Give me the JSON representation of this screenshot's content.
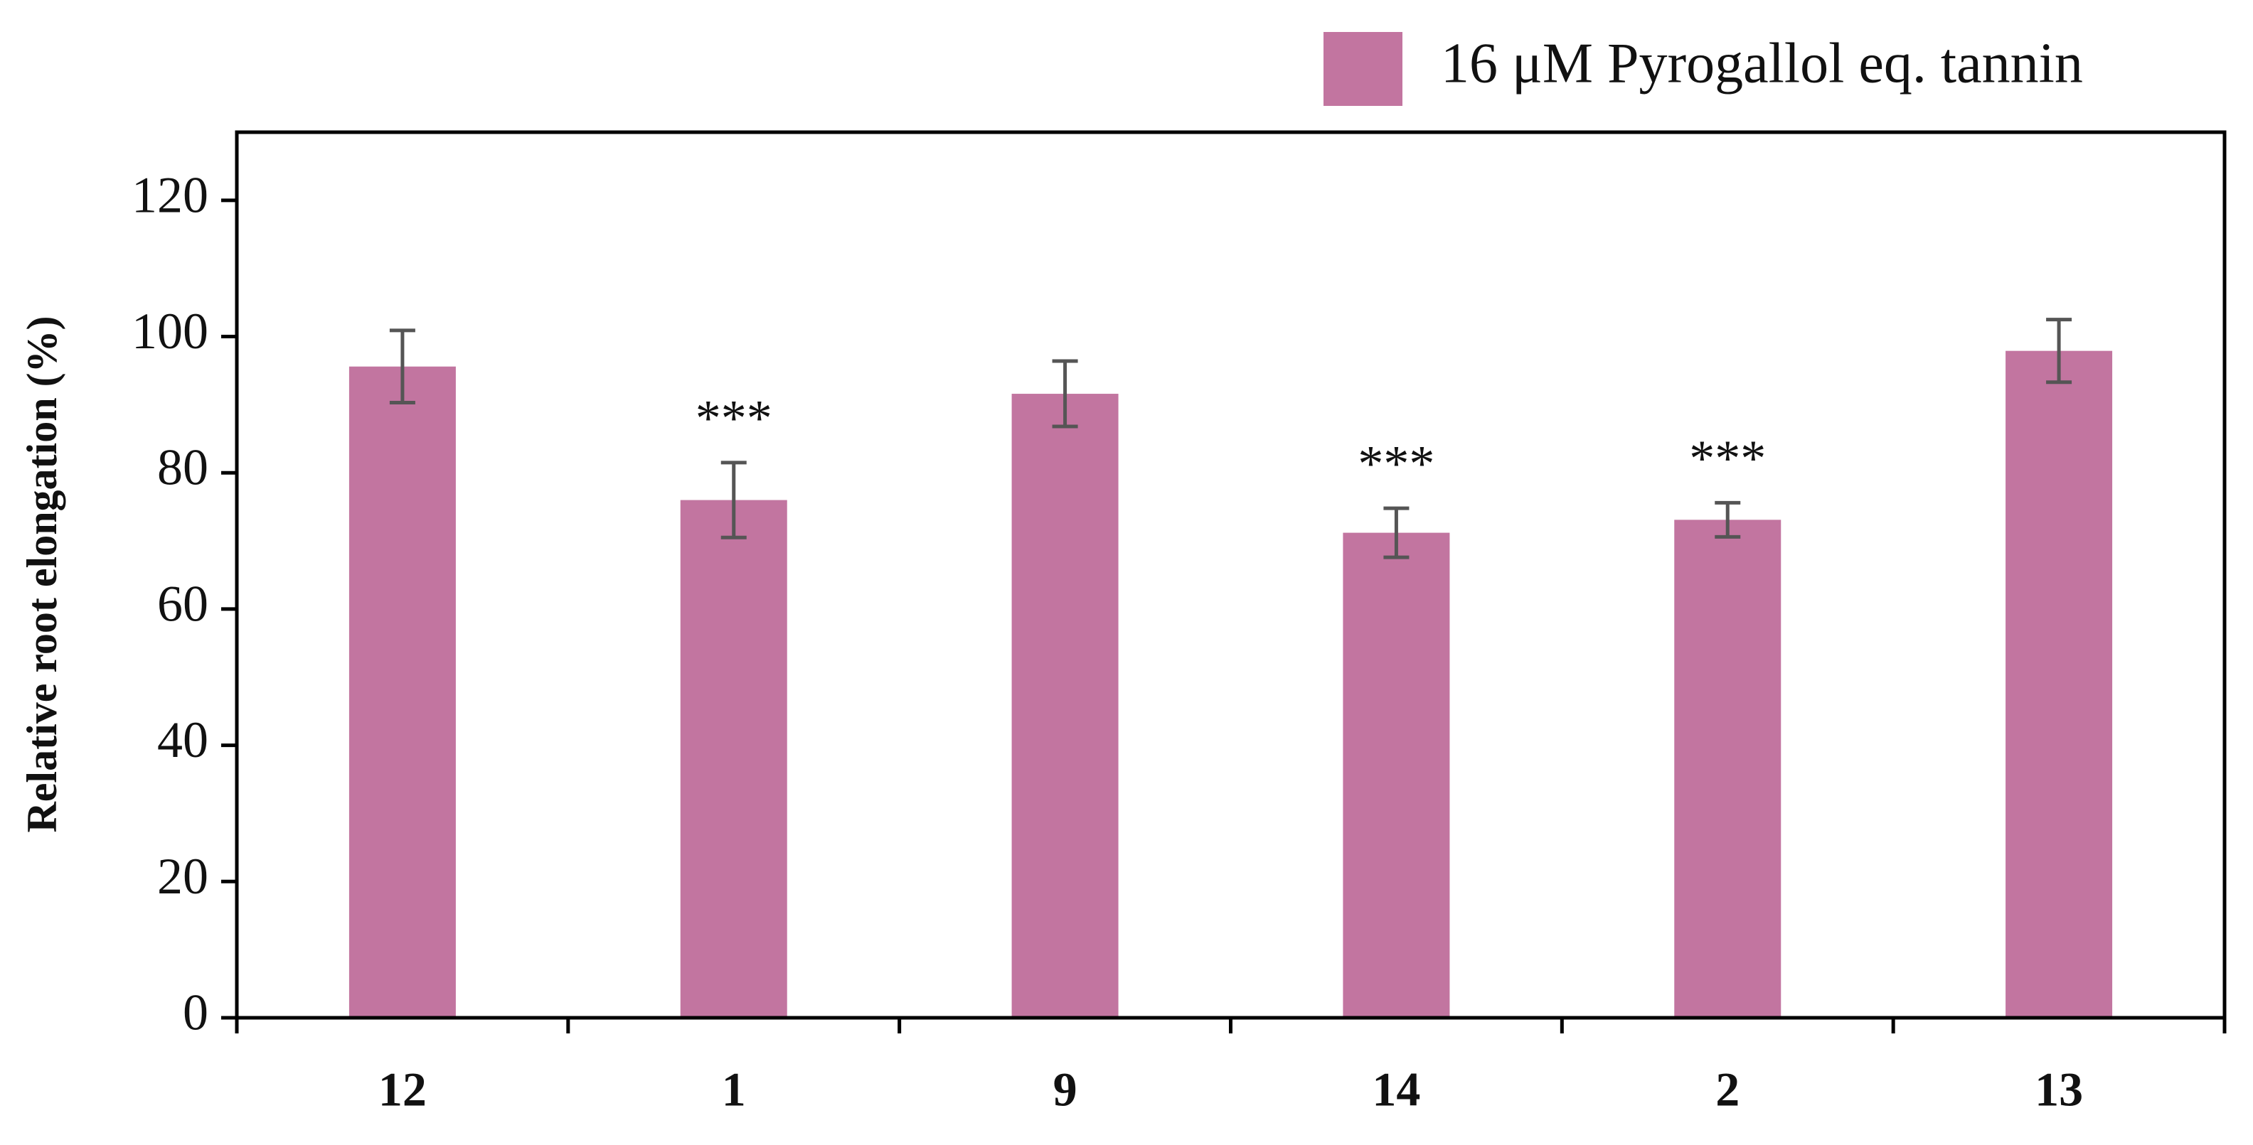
{
  "chart_data": {
    "type": "bar",
    "y_label": "Relative root elongation (%)",
    "categories": [
      "12",
      "1",
      "9",
      "14",
      "2",
      "13"
    ],
    "series": [
      {
        "name": "16 μM Pyrogallol eq. tannin",
        "color": "#c275a0",
        "values": [
          95.6,
          76,
          91.6,
          71.2,
          73.1,
          97.9
        ],
        "errors": [
          5.3,
          5.5,
          4.8,
          3.6,
          2.5,
          4.6
        ]
      }
    ],
    "annotations": [
      null,
      "***",
      null,
      "***",
      "***",
      null
    ],
    "ylim": [
      0,
      130
    ],
    "yticks": [
      0,
      20,
      40,
      60,
      80,
      100,
      120
    ],
    "grid": false,
    "legend": "top-right"
  }
}
